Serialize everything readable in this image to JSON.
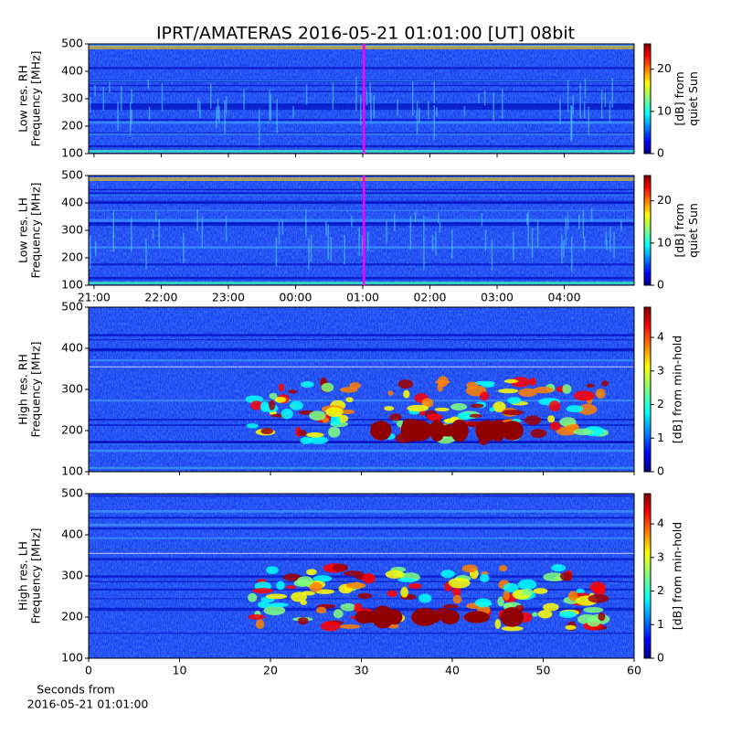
{
  "title": "IPRT/AMATERAS 2016-05-21 01:01:00 [UT]   08bit",
  "chart_data": [
    {
      "type": "heatmap",
      "ylabel": [
        "Low res. RH",
        "Frequency [MHz]"
      ],
      "ylim": [
        100,
        500
      ],
      "yticks": [
        100,
        200,
        300,
        400,
        500
      ],
      "xlim": [
        20.92,
        29.04
      ],
      "xticks": [
        21,
        22,
        23,
        24,
        25,
        26,
        27,
        28
      ],
      "show_xticklabels": false,
      "marker_x": 25.017,
      "marker_color": "#ff00ff",
      "colorbar": {
        "label": [
          "[dB] from",
          "quiet Sun"
        ],
        "lim": [
          0,
          26
        ],
        "ticks": [
          0,
          10,
          20
        ],
        "colormap": "jet"
      }
    },
    {
      "type": "heatmap",
      "ylabel": [
        "Low res. LH",
        "Frequency [MHz]"
      ],
      "ylim": [
        100,
        500
      ],
      "yticks": [
        100,
        200,
        300,
        400,
        500
      ],
      "xlim": [
        20.92,
        29.04
      ],
      "xticks": [
        {
          "value": 21,
          "label": "21:00"
        },
        {
          "value": 22,
          "label": "22:00"
        },
        {
          "value": 23,
          "label": "23:00"
        },
        {
          "value": 24,
          "label": "00:00"
        },
        {
          "value": 25,
          "label": "01:00"
        },
        {
          "value": 26,
          "label": "02:00"
        },
        {
          "value": 27,
          "label": "03:00"
        },
        {
          "value": 28,
          "label": "04:00"
        }
      ],
      "show_xticklabels": true,
      "marker_x": 25.017,
      "marker_color": "#ff00ff",
      "colorbar": {
        "label": [
          "[dB] from",
          "quiet Sun"
        ],
        "lim": [
          0,
          26
        ],
        "ticks": [
          0,
          10,
          20
        ],
        "colormap": "jet"
      }
    },
    {
      "type": "heatmap",
      "ylabel": [
        "High res. RH",
        "Frequency [MHz]"
      ],
      "ylim": [
        100,
        500
      ],
      "yticks": [
        100,
        200,
        300,
        400,
        500
      ],
      "xlim": [
        0,
        60
      ],
      "xticks": [
        0,
        10,
        20,
        30,
        40,
        50,
        60
      ],
      "show_xticklabels": false,
      "colorbar": {
        "label": [
          "[dB] from min-hold"
        ],
        "lim": [
          0,
          4.9
        ],
        "ticks": [
          0,
          1,
          2,
          3,
          4
        ],
        "colormap": "jet"
      }
    },
    {
      "type": "heatmap",
      "ylabel": [
        "High res. LH",
        "Frequency [MHz]"
      ],
      "ylim": [
        100,
        500
      ],
      "yticks": [
        100,
        200,
        300,
        400,
        500
      ],
      "xlim": [
        0,
        60
      ],
      "xticks": [
        0,
        10,
        20,
        30,
        40,
        50,
        60
      ],
      "show_xticklabels": true,
      "xlabel": [
        "Seconds from",
        "2016-05-21 01:01:00"
      ],
      "colorbar": {
        "label": [
          "[dB] from min-hold"
        ],
        "lim": [
          0,
          4.9
        ],
        "ticks": [
          0,
          1,
          2,
          3,
          4
        ],
        "colormap": "jet"
      }
    }
  ]
}
